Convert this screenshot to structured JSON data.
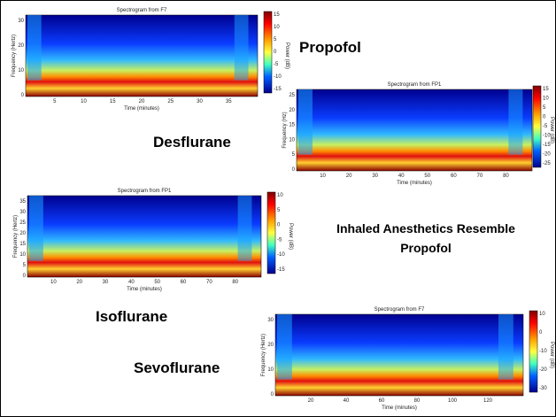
{
  "labels": {
    "propofol": "Propofol",
    "desflurane": "Desflurane",
    "isoflurane": "Isoflurane",
    "sevoflurane": "Sevoflurane"
  },
  "caption": [
    "Inhaled Anesthetics Resemble",
    "Propofol"
  ],
  "panels": [
    {
      "title": "Spectrogram from F7",
      "x_label": "Time (minutes)",
      "y_label": "Frequency (Hertz)",
      "colorbar_label": "Power (dB)",
      "x_ticks": [
        5,
        10,
        15,
        20,
        25,
        30,
        35
      ],
      "y_ticks": [
        30,
        20,
        10,
        0
      ],
      "colorbar_ticks": [
        15,
        10,
        5,
        0,
        -5,
        -10,
        -15
      ]
    },
    {
      "title": "Spectrogram from FP1",
      "x_label": "Time (minutes)",
      "y_label": "Frequency (Hz)",
      "colorbar_label": "Power (dB)",
      "x_ticks": [
        10,
        20,
        30,
        40,
        50,
        60,
        70,
        80
      ],
      "y_ticks": [
        25,
        20,
        15,
        10,
        5,
        0
      ],
      "colorbar_ticks": [
        15,
        10,
        5,
        0,
        -5,
        -10,
        -15,
        -20,
        -25
      ]
    },
    {
      "title": "Spectrogram from FP1",
      "x_label": "Time (minutes)",
      "y_label": "Frequency (Hertz)",
      "colorbar_label": "Power (dB)",
      "x_ticks": [
        10,
        20,
        30,
        40,
        50,
        60,
        70,
        80
      ],
      "y_ticks": [
        35,
        30,
        25,
        20,
        15,
        10,
        5,
        0
      ],
      "colorbar_ticks": [
        10,
        5,
        0,
        -5,
        -10,
        -15
      ]
    },
    {
      "title": "Spectrogram from F7",
      "x_label": "Time (minutes)",
      "y_label": "Frequency (Hertz)",
      "colorbar_label": "Power (dB)",
      "x_ticks": [
        20,
        40,
        60,
        80,
        100,
        120
      ],
      "y_ticks": [
        30,
        20,
        10,
        0
      ],
      "colorbar_ticks": [
        10,
        0,
        -10,
        -20,
        -30
      ]
    }
  ]
}
